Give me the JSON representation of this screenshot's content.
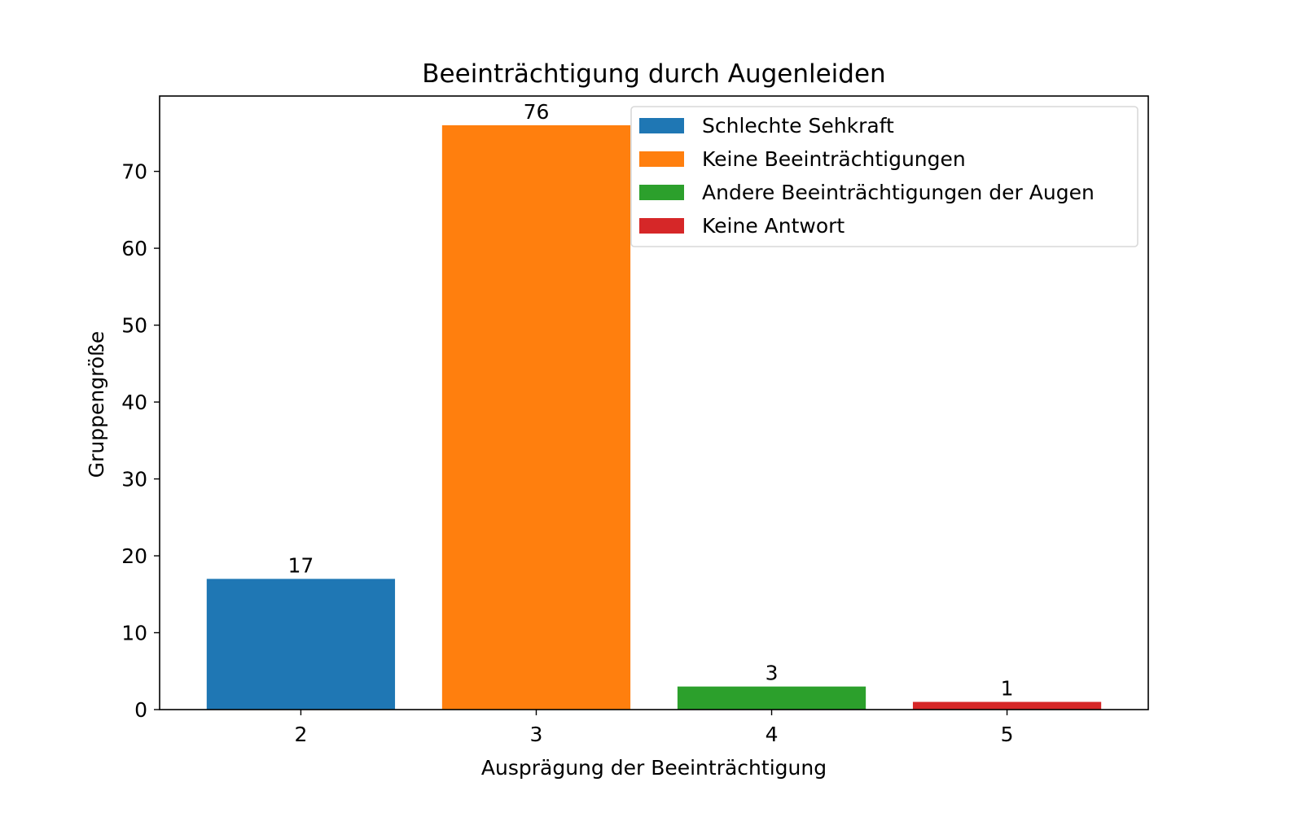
{
  "chart_data": {
    "type": "bar",
    "title": "Beeinträchtigung durch Augenleiden",
    "xlabel": "Ausprägung der Beeinträchtigung",
    "ylabel": "Gruppengröße",
    "categories": [
      "2",
      "3",
      "4",
      "5"
    ],
    "values": [
      17,
      76,
      3,
      1
    ],
    "data_labels": [
      "17",
      "76",
      "3",
      "1"
    ],
    "bar_colors": [
      "#1f77b4",
      "#ff7f0e",
      "#2ca02c",
      "#d62728"
    ],
    "xlim": [
      1.4,
      5.6
    ],
    "ylim": [
      0,
      79.8
    ],
    "yticks": [
      0,
      10,
      20,
      30,
      40,
      50,
      60,
      70
    ],
    "grid": false,
    "legend_position": "top-right",
    "legend": [
      {
        "label": "Schlechte Sehkraft",
        "color": "#1f77b4"
      },
      {
        "label": "Keine Beeinträchtigungen",
        "color": "#ff7f0e"
      },
      {
        "label": "Andere Beeinträchtigungen der Augen",
        "color": "#2ca02c"
      },
      {
        "label": "Keine Antwort",
        "color": "#d62728"
      }
    ]
  }
}
